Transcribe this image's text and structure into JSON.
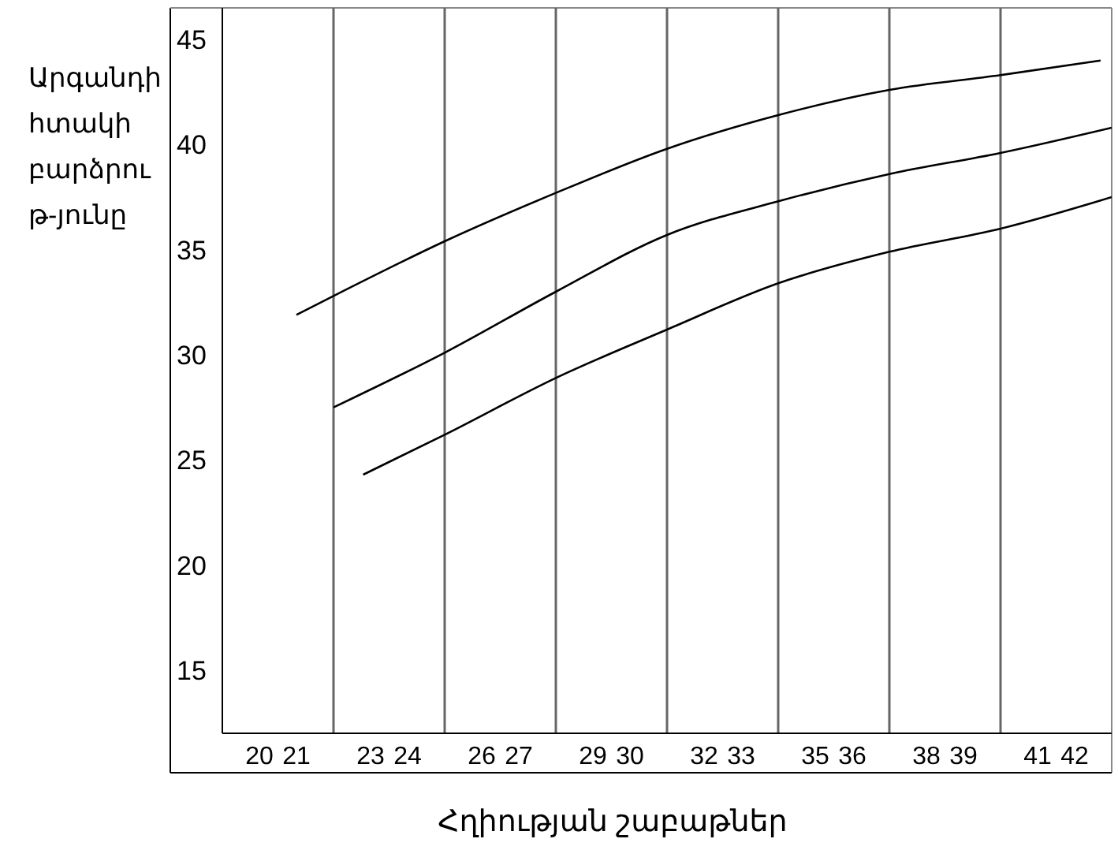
{
  "chart_data": {
    "type": "line",
    "xlabel": "Հղիության շաբաթներ",
    "ylabel": "Արգանդի հտակի բարձրու թ-յունը",
    "xlim": [
      19,
      43
    ],
    "ylim": [
      12,
      46.5
    ],
    "xticks": [
      20,
      21,
      23,
      24,
      26,
      27,
      29,
      30,
      32,
      33,
      35,
      36,
      38,
      39,
      41,
      42
    ],
    "yticks": [
      15,
      20,
      25,
      30,
      35,
      40,
      45
    ],
    "marker": "none",
    "ref_lines": [
      {
        "axis": "x",
        "value": 22,
        "color": "#666666"
      },
      {
        "axis": "x",
        "value": 25,
        "color": "#666666"
      },
      {
        "axis": "x",
        "value": 28,
        "color": "#666666"
      },
      {
        "axis": "x",
        "value": 31,
        "color": "#666666"
      },
      {
        "axis": "x",
        "value": 34,
        "color": "#666666"
      },
      {
        "axis": "x",
        "value": 37,
        "color": "#666666"
      },
      {
        "axis": "x",
        "value": 40,
        "color": "#666666"
      }
    ],
    "series": [
      {
        "color": "#000000",
        "x": [
          21,
          22,
          25,
          28,
          31,
          34,
          37,
          40,
          42.7
        ],
        "values": [
          31.9,
          32.8,
          35.4,
          37.7,
          39.8,
          41.4,
          42.6,
          43.3,
          44
        ]
      },
      {
        "color": "#000000",
        "x": [
          22,
          25,
          28,
          31,
          34,
          37,
          40,
          43
        ],
        "values": [
          27.5,
          30.1,
          33,
          35.7,
          37.3,
          38.6,
          39.6,
          40.8
        ]
      },
      {
        "color": "#000000",
        "x": [
          22.8,
          25,
          28,
          31,
          34,
          37,
          40,
          43
        ],
        "values": [
          24.3,
          26.2,
          28.9,
          31.2,
          33.4,
          34.9,
          36,
          37.5
        ]
      }
    ]
  }
}
